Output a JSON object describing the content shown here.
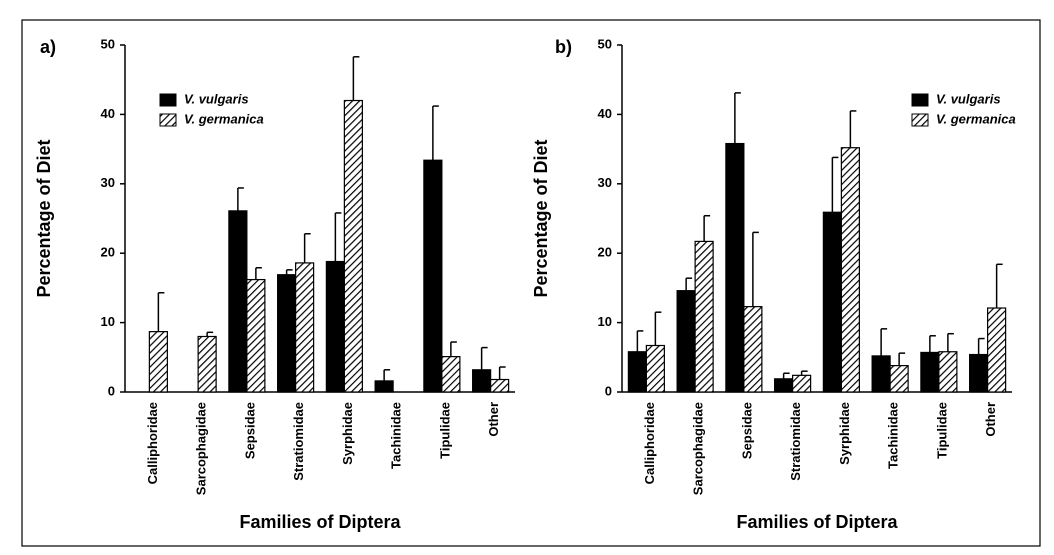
{
  "chart_data": [
    {
      "type": "bar",
      "panel_label": "a)",
      "ylabel": "Percentage of Diet",
      "xlabel": "Families of Diptera",
      "categories": [
        "Calliphoridae",
        "Sarcophagidae",
        "Sepsidae",
        "Stratiomidae",
        "Syrphidae",
        "Tachinidae",
        "Tipulidae",
        "Other"
      ],
      "series": [
        {
          "name": "V. vulgaris",
          "color": "#000000",
          "hatch": false,
          "values": [
            0,
            0,
            26.1,
            16.9,
            18.8,
            1.6,
            33.4,
            3.2
          ],
          "errors": [
            null,
            null,
            3.3,
            0.7,
            7.0,
            1.6,
            7.8,
            3.2
          ]
        },
        {
          "name": "V. germanica",
          "color": "#000000",
          "hatch": true,
          "values": [
            8.7,
            8.0,
            16.2,
            18.6,
            42.0,
            0,
            5.1,
            1.8
          ],
          "errors": [
            5.6,
            0.6,
            1.7,
            4.2,
            6.3,
            null,
            2.1,
            1.8
          ]
        }
      ],
      "ylim": [
        0,
        50
      ],
      "yticks": [
        0,
        10,
        20,
        30,
        40,
        50
      ],
      "legend": "upper left"
    },
    {
      "type": "bar",
      "panel_label": "b)",
      "ylabel": "Percentage of Diet",
      "xlabel": "Families of Diptera",
      "categories": [
        "Calliphoridae",
        "Sarcophagidae",
        "Sepsidae",
        "Stratiomidae",
        "Syrphidae",
        "Tachinidae",
        "Tipulidae",
        "Other"
      ],
      "series": [
        {
          "name": "V. vulgaris",
          "color": "#000000",
          "hatch": false,
          "values": [
            5.8,
            14.6,
            35.8,
            1.9,
            25.9,
            5.2,
            5.7,
            5.4
          ],
          "errors": [
            3.0,
            1.8,
            7.3,
            0.8,
            7.9,
            3.9,
            2.4,
            2.3
          ]
        },
        {
          "name": "V. germanica",
          "color": "#000000",
          "hatch": true,
          "values": [
            6.7,
            21.7,
            12.3,
            2.4,
            35.2,
            3.8,
            5.8,
            12.1
          ],
          "errors": [
            4.8,
            3.7,
            10.7,
            0.6,
            5.3,
            1.8,
            2.6,
            6.3
          ]
        }
      ],
      "ylim": [
        0,
        50
      ],
      "yticks": [
        0,
        10,
        20,
        30,
        40,
        50
      ],
      "legend": "upper right"
    }
  ]
}
